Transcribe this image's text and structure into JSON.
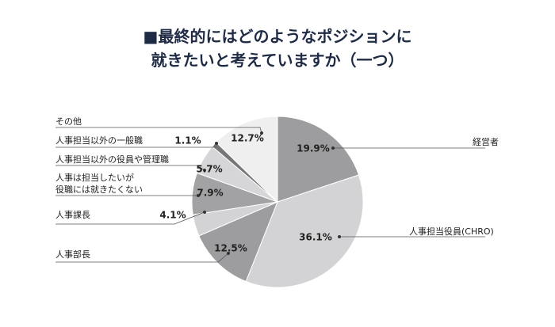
{
  "chart_data": {
    "type": "pie",
    "title": [
      "■最終的にはどのようなポジションに",
      "就きたいと考えていますか（一つ）"
    ],
    "categories": [
      "経営者",
      "人事担当役員(CHRO)",
      "人事部長",
      "人事課長",
      "人事は担当したいが\n役職には就きたくない",
      "人事担当以外の役員や管理職",
      "人事担当以外の一般職",
      "その他"
    ],
    "values": [
      19.9,
      36.1,
      12.5,
      4.1,
      7.9,
      5.7,
      1.1,
      12.7
    ],
    "value_labels": [
      "19.9%",
      "36.1%",
      "12.5%",
      "4.1%",
      "7.9%",
      "5.7%",
      "1.1%",
      "12.7%"
    ],
    "colors": [
      "#9d9d9f",
      "#d3d3d5",
      "#9d9d9f",
      "#d3d3d5",
      "#a2a2a4",
      "#d6d6d8",
      "#77777a",
      "#efeff0"
    ]
  }
}
